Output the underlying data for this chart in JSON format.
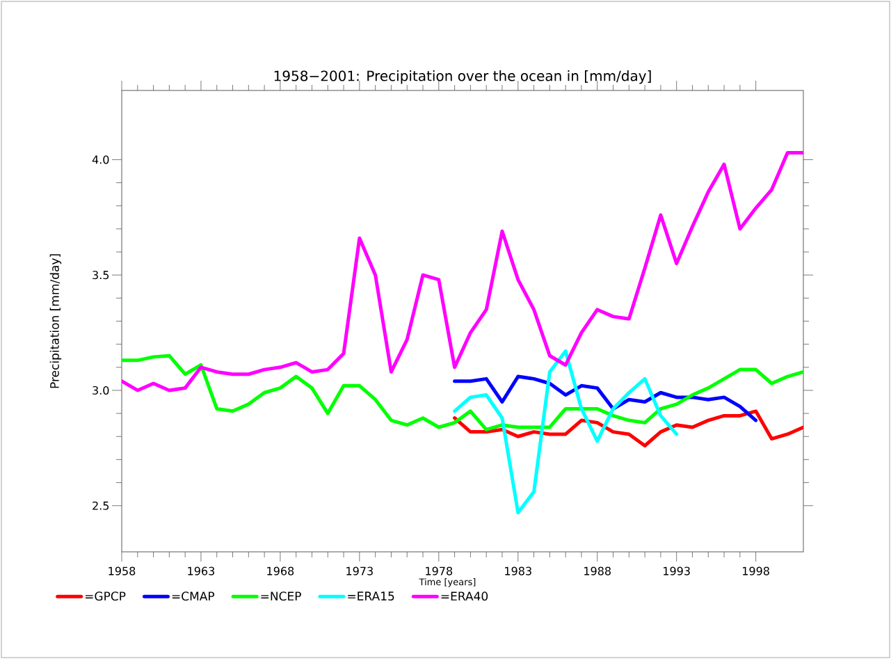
{
  "chart_data": {
    "type": "line",
    "title": "1958−2001: Precipitation over the ocean in [mm/day]",
    "xlabel": "Time [years]",
    "ylabel": "Precipitation [mm/day]",
    "x": [
      1958,
      1959,
      1960,
      1961,
      1962,
      1963,
      1964,
      1965,
      1966,
      1967,
      1968,
      1969,
      1970,
      1971,
      1972,
      1973,
      1974,
      1975,
      1976,
      1977,
      1978,
      1979,
      1980,
      1981,
      1982,
      1983,
      1984,
      1985,
      1986,
      1987,
      1988,
      1989,
      1990,
      1991,
      1992,
      1993,
      1994,
      1995,
      1996,
      1997,
      1998,
      1999,
      2000,
      2001
    ],
    "series": [
      {
        "name": "=GPCP",
        "color": "#ff0000",
        "x": [
          1979,
          1980,
          1981,
          1982,
          1983,
          1984,
          1985,
          1986,
          1987,
          1988,
          1989,
          1990,
          1991,
          1992,
          1993,
          1994,
          1995,
          1996,
          1997,
          1998,
          1999,
          2000,
          2001
        ],
        "values": [
          2.88,
          2.82,
          2.82,
          2.83,
          2.8,
          2.82,
          2.81,
          2.81,
          2.87,
          2.86,
          2.82,
          2.81,
          2.76,
          2.82,
          2.85,
          2.84,
          2.87,
          2.89,
          2.89,
          2.91,
          2.79,
          2.81,
          2.84
        ]
      },
      {
        "name": "=CMAP",
        "color": "#0000ff",
        "x": [
          1979,
          1980,
          1981,
          1982,
          1983,
          1984,
          1985,
          1986,
          1987,
          1988,
          1989,
          1990,
          1991,
          1992,
          1993,
          1994,
          1995,
          1996,
          1997,
          1998
        ],
        "values": [
          3.04,
          3.04,
          3.05,
          2.95,
          3.06,
          3.05,
          3.03,
          2.98,
          3.02,
          3.01,
          2.92,
          2.96,
          2.95,
          2.99,
          2.97,
          2.97,
          2.96,
          2.97,
          2.93,
          2.87
        ]
      },
      {
        "name": "=NCEP",
        "color": "#00ff00",
        "values": [
          3.13,
          3.13,
          3.145,
          3.15,
          3.07,
          3.11,
          2.92,
          2.91,
          2.94,
          2.99,
          3.01,
          3.06,
          3.01,
          2.9,
          3.02,
          3.02,
          2.96,
          2.87,
          2.85,
          2.88,
          2.84,
          2.86,
          2.91,
          2.83,
          2.85,
          2.84,
          2.84,
          2.84,
          2.92,
          2.92,
          2.92,
          2.89,
          2.87,
          2.86,
          2.92,
          2.94,
          2.98,
          3.01,
          3.05,
          3.09,
          3.09,
          3.03,
          3.06,
          3.08
        ]
      },
      {
        "name": "=ERA15",
        "color": "#00ffff",
        "x": [
          1979,
          1980,
          1981,
          1982,
          1983,
          1984,
          1985,
          1986,
          1987,
          1988,
          1989,
          1990,
          1991,
          1992,
          1993
        ],
        "values": [
          2.91,
          2.97,
          2.98,
          2.88,
          2.47,
          2.56,
          3.08,
          3.17,
          2.92,
          2.78,
          2.92,
          2.99,
          3.05,
          2.89,
          2.81
        ]
      },
      {
        "name": "=ERA40",
        "color": "#ff00ff",
        "values": [
          3.04,
          3.0,
          3.03,
          3.0,
          3.01,
          3.1,
          3.08,
          3.07,
          3.07,
          3.09,
          3.1,
          3.12,
          3.08,
          3.09,
          3.16,
          3.66,
          3.5,
          3.08,
          3.22,
          3.5,
          3.48,
          3.1,
          3.25,
          3.35,
          3.69,
          3.48,
          3.35,
          3.15,
          3.11,
          3.25,
          3.35,
          3.32,
          3.31,
          3.53,
          3.76,
          3.55,
          3.71,
          3.86,
          3.98,
          3.7,
          3.79,
          3.87,
          4.03,
          4.03
        ]
      }
    ],
    "xlim": [
      1958,
      2001
    ],
    "xticks": [
      1958,
      1963,
      1968,
      1973,
      1978,
      1983,
      1988,
      1993,
      1998
    ],
    "ylim": [
      2.3,
      4.3
    ],
    "yticks": [
      {
        "value": 2.5,
        "label": "2.5"
      },
      {
        "value": 3.0,
        "label": "3.0"
      },
      {
        "value": 3.5,
        "label": "3.5"
      },
      {
        "value": 4.0,
        "label": "4.0"
      }
    ],
    "legend": "bottom"
  }
}
